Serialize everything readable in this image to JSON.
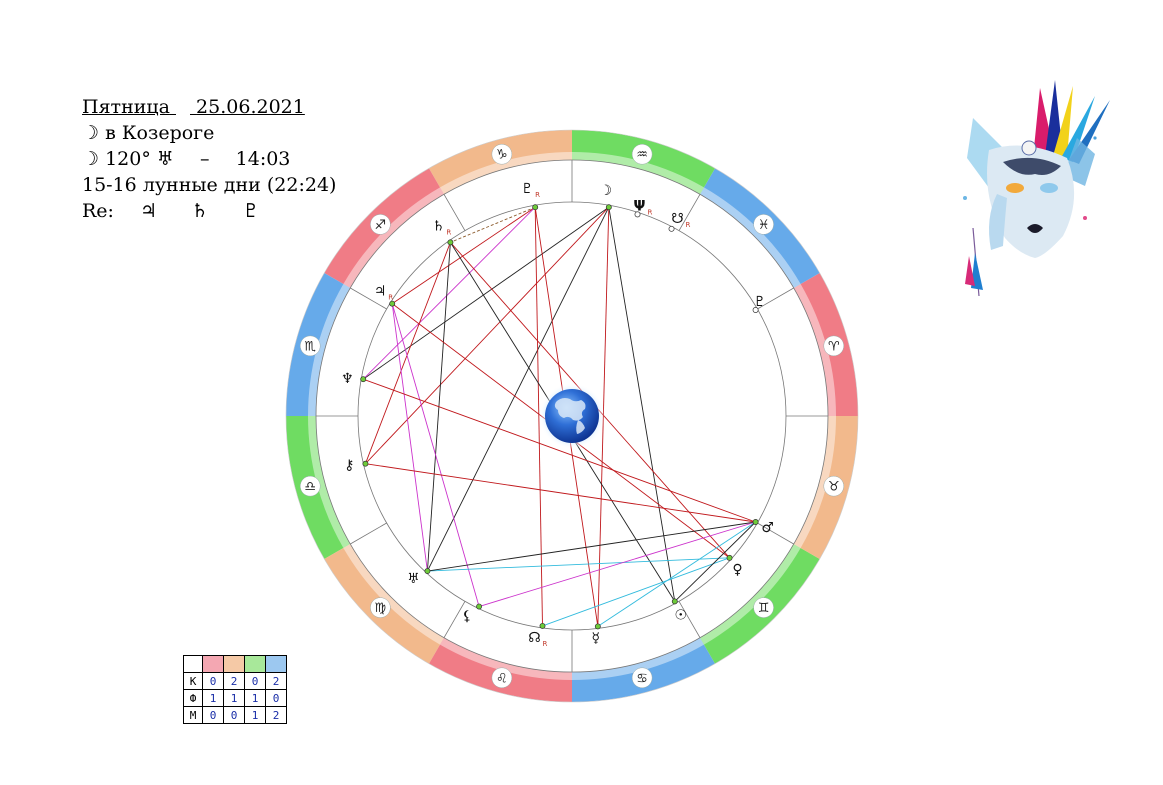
{
  "info": {
    "weekday": "Пятница",
    "date": "25.06.2021",
    "moon_symbol": "☽",
    "moon_sign_text": "в Козероге",
    "aspect_angle": "120°",
    "uranus_symbol": "♅",
    "dash": "–",
    "aspect_time": "14:03",
    "lunar_days": "15-16 лунные дни (22:24)",
    "re_label": "Re:",
    "retro_symbols": [
      "♃",
      "♄",
      "♇"
    ]
  },
  "zodiac_ring": {
    "signs": [
      "♑",
      "♐",
      "♏",
      "♎",
      "♍",
      "♌",
      "♋",
      "♊",
      "♉",
      "♈",
      "♓",
      "♒"
    ],
    "colors": {
      "fire": "#f07c86",
      "earth": "#f2b98c",
      "air": "#6fdc62",
      "water": "#66aaea"
    }
  },
  "planets": [
    {
      "symbol": "☽",
      "retro": ""
    },
    {
      "symbol": "♇",
      "retro": "R"
    },
    {
      "symbol": "♄",
      "retro": "R"
    },
    {
      "symbol": "♃",
      "retro": "R"
    },
    {
      "symbol": "♆",
      "retro": ""
    },
    {
      "symbol": "⚷",
      "retro": ""
    },
    {
      "symbol": "♅",
      "retro": ""
    },
    {
      "symbol": "⚸",
      "retro": ""
    },
    {
      "symbol": "☊",
      "retro": "R"
    },
    {
      "symbol": "☿",
      "retro": ""
    },
    {
      "symbol": "☉",
      "retro": ""
    },
    {
      "symbol": "♀",
      "retro": ""
    },
    {
      "symbol": "♂",
      "retro": ""
    },
    {
      "symbol": "☋",
      "retro": "R"
    },
    {
      "symbol": "Ψ",
      "retro": "R"
    },
    {
      "symbol": "♇",
      "retro": ""
    }
  ],
  "aspect_colors": {
    "trine": "#222222",
    "square": "#c0181c",
    "quincunx": "#cc33cc",
    "sextile": "#33bbdd",
    "conjunction": "#8b5a2b"
  },
  "stats_table": {
    "header_colors": [
      "#f4a7b2",
      "#f5c9a6",
      "#a8e89a",
      "#9cc8f0"
    ],
    "rows": [
      {
        "label": "К",
        "values": [
          "0",
          "2",
          "0",
          "2"
        ]
      },
      {
        "label": "Ф",
        "values": [
          "1",
          "1",
          "1",
          "0"
        ]
      },
      {
        "label": "М",
        "values": [
          "0",
          "0",
          "1",
          "2"
        ]
      }
    ]
  }
}
